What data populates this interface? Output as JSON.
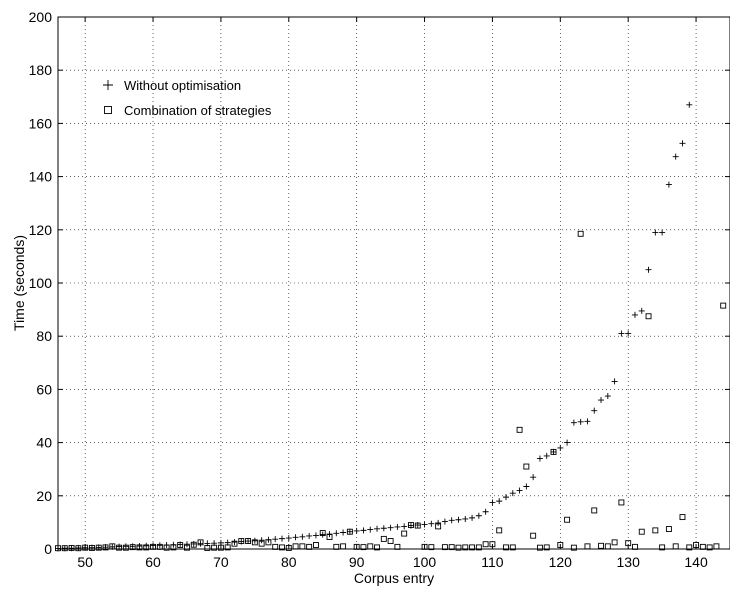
{
  "chart_data": {
    "type": "scatter",
    "xlabel": "Corpus entry",
    "ylabel": "Time (seconds)",
    "xlim": [
      46,
      145
    ],
    "ylim": [
      0,
      200
    ],
    "xticks": [
      50,
      60,
      70,
      80,
      90,
      100,
      110,
      120,
      130,
      140
    ],
    "yticks": [
      0,
      20,
      40,
      60,
      80,
      100,
      120,
      140,
      160,
      180,
      200
    ],
    "grid": true,
    "legend_position": "top-left",
    "series": [
      {
        "name": "Without optimisation",
        "marker": "plus",
        "color": "#000000",
        "x": [
          46,
          47,
          48,
          49,
          50,
          51,
          52,
          53,
          54,
          55,
          56,
          57,
          58,
          59,
          60,
          61,
          62,
          63,
          64,
          65,
          66,
          67,
          68,
          69,
          70,
          71,
          72,
          73,
          74,
          75,
          76,
          77,
          78,
          79,
          80,
          81,
          82,
          83,
          84,
          85,
          86,
          87,
          88,
          89,
          90,
          91,
          92,
          93,
          94,
          95,
          96,
          97,
          98,
          99,
          100,
          101,
          102,
          103,
          104,
          105,
          106,
          107,
          108,
          109,
          110,
          111,
          112,
          113,
          114,
          115,
          116,
          117,
          118,
          119,
          120,
          121,
          122,
          123,
          124,
          125,
          126,
          127,
          128,
          129,
          130,
          131,
          132,
          133,
          134,
          135,
          136,
          137,
          138,
          139
        ],
        "y": [
          0.2,
          0.3,
          0.3,
          0.4,
          0.5,
          0.5,
          0.6,
          0.7,
          0.8,
          0.9,
          1.0,
          1.0,
          1.1,
          1.2,
          1.3,
          1.4,
          1.5,
          1.6,
          1.7,
          1.8,
          1.9,
          2.0,
          2.1,
          2.2,
          2.3,
          2.4,
          2.6,
          2.8,
          3.0,
          3.1,
          3.3,
          3.5,
          3.7,
          3.9,
          4.1,
          4.4,
          4.6,
          4.9,
          5.1,
          5.4,
          5.6,
          5.9,
          6.2,
          6.5,
          6.8,
          7.0,
          7.3,
          7.6,
          7.8,
          8.0,
          8.3,
          8.5,
          8.8,
          9.0,
          9.2,
          9.5,
          9.8,
          10.3,
          10.8,
          11.0,
          11.3,
          11.7,
          12.5,
          14.0,
          17.5,
          18.0,
          19.5,
          21.0,
          22.0,
          23.5,
          27.0,
          34.0,
          35.0,
          36.5,
          38.0,
          40.0,
          47.5,
          47.8,
          48.0,
          52.0,
          56.0,
          57.5,
          63.0,
          81.0,
          81.0,
          88.0,
          89.5,
          105.0,
          119.0,
          119.0,
          137.0,
          147.5,
          152.5,
          167.0
        ]
      },
      {
        "name": "Combination of strategies",
        "marker": "square",
        "color": "#000000",
        "x": [
          46,
          47,
          48,
          49,
          50,
          51,
          52,
          53,
          54,
          55,
          56,
          57,
          58,
          59,
          60,
          61,
          62,
          63,
          64,
          65,
          66,
          67,
          68,
          69,
          70,
          71,
          72,
          73,
          74,
          75,
          76,
          77,
          78,
          79,
          80,
          81,
          82,
          83,
          84,
          85,
          86,
          87,
          88,
          89,
          90,
          91,
          92,
          93,
          94,
          95,
          96,
          97,
          98,
          99,
          100,
          101,
          102,
          103,
          104,
          105,
          106,
          107,
          108,
          109,
          110,
          111,
          112,
          113,
          114,
          115,
          116,
          117,
          118,
          119,
          120,
          121,
          122,
          123,
          124,
          125,
          126,
          127,
          128,
          129,
          130,
          131,
          132,
          133,
          134,
          135,
          136,
          137,
          138,
          139,
          140,
          141,
          142,
          143,
          144
        ],
        "y": [
          0.3,
          0.3,
          0.4,
          0.3,
          0.5,
          0.4,
          0.5,
          0.6,
          1.0,
          0.5,
          0.5,
          0.7,
          0.6,
          0.6,
          0.8,
          0.8,
          0.5,
          0.6,
          1.5,
          0.5,
          1.6,
          2.5,
          0.4,
          0.5,
          0.5,
          0.6,
          2.0,
          3.0,
          3.0,
          2.5,
          2.0,
          2.5,
          0.8,
          0.6,
          0.4,
          1.0,
          1.0,
          0.8,
          1.5,
          6.0,
          4.5,
          0.8,
          1.0,
          6.5,
          0.8,
          0.7,
          1.0,
          0.6,
          3.8,
          3.0,
          0.8,
          5.8,
          9.0,
          8.8,
          0.8,
          0.7,
          8.5,
          0.7,
          0.7,
          0.5,
          0.6,
          0.6,
          0.6,
          1.8,
          1.8,
          7.0,
          0.6,
          0.6,
          44.8,
          31.0,
          5.0,
          0.5,
          0.6,
          36.5,
          1.5,
          11.0,
          0.5,
          118.5,
          1.0,
          14.5,
          1.2,
          1.0,
          2.5,
          17.5,
          2.2,
          0.8,
          6.5,
          87.5,
          7.0,
          0.6,
          7.5,
          1.0,
          12.0,
          0.6,
          1.5,
          0.8,
          0.6,
          1.0,
          91.5
        ]
      }
    ]
  }
}
